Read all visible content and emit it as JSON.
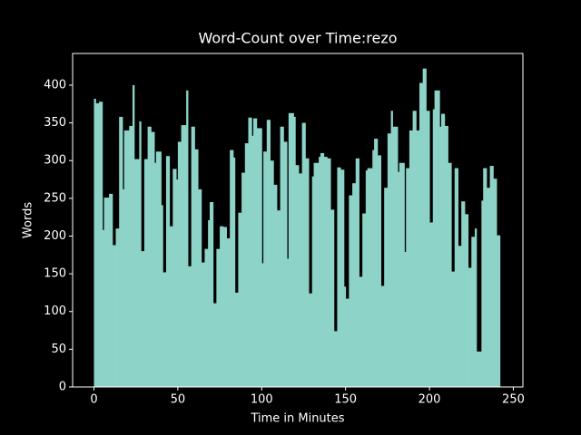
{
  "chart_data": {
    "type": "bar",
    "title": "Word-Count over Time:rezo",
    "x_label": "Time in Minutes",
    "y_label": "Words",
    "color": "#8dd3c7",
    "x": [
      0,
      1,
      3,
      5,
      6,
      9,
      11,
      13,
      15,
      17,
      18,
      21,
      23,
      24,
      27,
      28,
      30,
      32,
      34,
      36,
      37,
      40,
      41,
      43,
      45,
      47,
      49,
      50,
      52,
      55,
      56,
      58,
      60,
      62,
      64,
      66,
      68,
      69,
      71,
      73,
      75,
      77,
      79,
      81,
      83,
      84,
      86,
      88,
      90,
      92,
      94,
      95,
      97,
      100,
      101,
      103,
      105,
      107,
      109,
      111,
      113,
      115,
      116,
      119,
      120,
      122,
      124,
      126,
      128,
      130,
      131,
      134,
      135,
      137,
      139,
      141,
      143,
      145,
      147,
      149,
      150,
      152,
      154,
      156,
      158,
      160,
      162,
      163,
      166,
      167,
      169,
      171,
      173,
      175,
      177,
      178,
      181,
      182,
      185,
      186,
      188,
      190,
      192,
      194,
      196,
      198,
      200,
      202,
      203,
      206,
      207,
      209,
      211,
      213,
      215,
      217,
      219,
      221,
      223,
      225,
      227,
      228,
      231,
      232,
      234,
      236,
      238,
      240
    ],
    "values": [
      382,
      376,
      378,
      208,
      251,
      256,
      188,
      210,
      358,
      262,
      340,
      346,
      400,
      302,
      352,
      180,
      302,
      345,
      338,
      297,
      312,
      241,
      152,
      306,
      213,
      289,
      275,
      325,
      347,
      393,
      160,
      345,
      315,
      262,
      165,
      183,
      221,
      245,
      111,
      183,
      213,
      212,
      197,
      314,
      304,
      125,
      231,
      284,
      323,
      357,
      333,
      356,
      343,
      164,
      312,
      354,
      300,
      268,
      234,
      345,
      325,
      170,
      363,
      358,
      294,
      283,
      350,
      303,
      124,
      279,
      297,
      305,
      310,
      305,
      303,
      235,
      74,
      291,
      288,
      133,
      117,
      254,
      270,
      303,
      146,
      230,
      287,
      290,
      314,
      329,
      307,
      134,
      264,
      336,
      366,
      345,
      285,
      297,
      179,
      290,
      340,
      366,
      340,
      403,
      422,
      366,
      218,
      368,
      393,
      345,
      362,
      346,
      297,
      153,
      290,
      187,
      246,
      229,
      158,
      199,
      210,
      47,
      247,
      290,
      264,
      293,
      276,
      201
    ],
    "xlim": [
      -12.7,
      255.7
    ],
    "xticks": [
      0,
      50,
      100,
      150,
      200,
      250
    ],
    "ylim": [
      0,
      442
    ],
    "yticks": [
      0,
      50,
      100,
      150,
      200,
      250,
      300,
      350,
      400
    ]
  }
}
